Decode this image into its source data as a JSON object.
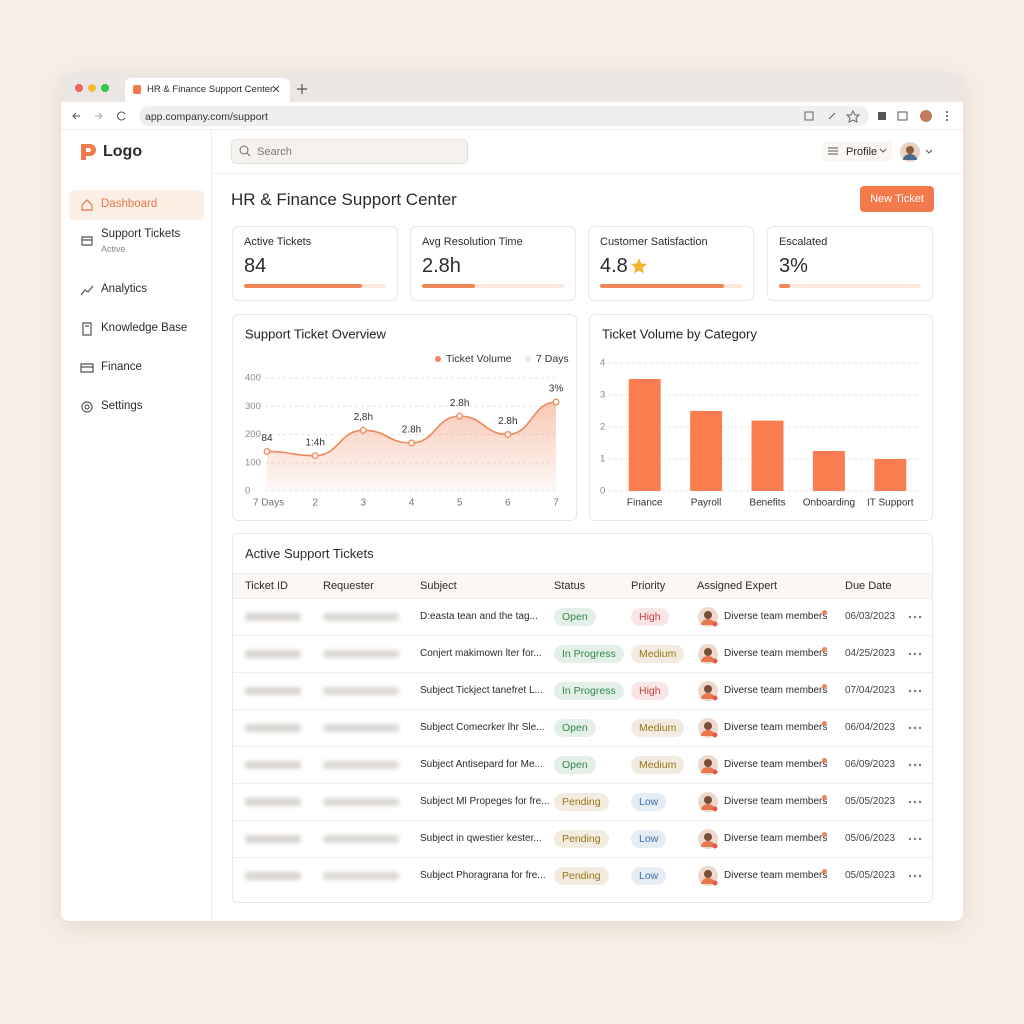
{
  "browser": {
    "tab_title": "HR & Finance Support Center",
    "url": "app.company.com/support"
  },
  "sidebar": {
    "logo": "Logo",
    "nav": [
      {
        "label": "Dashboard"
      },
      {
        "label": "Support Tickets",
        "sublabel": "Active"
      },
      {
        "label": "Analytics"
      },
      {
        "label": "Knowledge Base"
      },
      {
        "label": "Finance"
      },
      {
        "label": "Settings"
      }
    ]
  },
  "header": {
    "search_placeholder": "Search",
    "profile": "Profile"
  },
  "page": {
    "title": "HR & Finance Support Center",
    "new_ticket_button": "New Ticket"
  },
  "kpis": [
    {
      "label": "Active Tickets",
      "value": "84",
      "progress": 0.83
    },
    {
      "label": "Avg Resolution Time",
      "value": "2.8h",
      "progress": 0.37
    },
    {
      "label": "Customer Satisfaction",
      "value": "4.8",
      "progress": 0.87
    },
    {
      "label": "Escalated",
      "value": "3%",
      "progress": 0.08
    }
  ],
  "chart_data": [
    {
      "type": "line",
      "title": "Support Ticket Overview",
      "categories": [
        "7 Days",
        "2",
        "3",
        "4",
        "5",
        "6",
        "7"
      ],
      "series": [
        {
          "name": "Ticket Volume",
          "color": "#f0875a",
          "values": [
            140,
            125,
            215,
            170,
            265,
            200,
            315
          ],
          "point_labels": [
            "84",
            "1:4h",
            "2,8h",
            "2.8h",
            "2.8h",
            "2.8h",
            "3%"
          ]
        },
        {
          "name": "7 Days",
          "color": "#f6e3d4"
        }
      ],
      "ylim": [
        0,
        400
      ],
      "yticks": [
        0,
        100,
        200,
        300,
        400
      ],
      "grid": true
    },
    {
      "type": "bar",
      "title": "Ticket Volume by Category",
      "categories": [
        "Finance",
        "Payroll",
        "Benefits",
        "Onboarding",
        "IT Support"
      ],
      "values": [
        3.5,
        2.5,
        2.2,
        1.25,
        1
      ],
      "color": "#fa7d4f",
      "ylim": [
        0,
        4
      ],
      "yticks": [
        0,
        1,
        2,
        3,
        4
      ],
      "grid": true
    }
  ],
  "table": {
    "title": "Active Support Tickets",
    "columns": [
      "Ticket ID",
      "Requester",
      "Subject",
      "Status",
      "Priority",
      "Assigned Expert",
      "Due Date"
    ],
    "rows": [
      {
        "subject": "D:easta tean and the tag...",
        "status": {
          "label": "Open",
          "color": "#2f8a4a"
        },
        "priority": {
          "label": "High",
          "color": "#c94040"
        },
        "expert": "Diverse team members",
        "due_date": "06/03/2023"
      },
      {
        "subject": "Conjert makimown lter for...",
        "status": {
          "label": "In Progress",
          "color": "#2f8a4a"
        },
        "priority": {
          "label": "Medium",
          "color": "#9a7413"
        },
        "expert": "Diverse team members",
        "due_date": "04/25/2023"
      },
      {
        "subject": "Subject Tickject tanefret L...",
        "status": {
          "label": "In Progress",
          "color": "#2f8a4a"
        },
        "priority": {
          "label": "High",
          "color": "#c94040"
        },
        "expert": "Diverse team members",
        "due_date": "07/04/2023"
      },
      {
        "subject": "Subject Comecrker lhr Sle...",
        "status": {
          "label": "Open",
          "color": "#2f8a4a"
        },
        "priority": {
          "label": "Medium",
          "color": "#9a7413"
        },
        "expert": "Diverse team members",
        "due_date": "06/04/2023"
      },
      {
        "subject": "Subject Antisepard for Me...",
        "status": {
          "label": "Open",
          "color": "#2f8a4a"
        },
        "priority": {
          "label": "Medium",
          "color": "#9a7413"
        },
        "expert": "Diverse team members",
        "due_date": "06/09/2023"
      },
      {
        "subject": "Subject Ml Propeges for fre...",
        "status": {
          "label": "Pending",
          "color": "#9a7413"
        },
        "priority": {
          "label": "Low",
          "color": "#3b6fb0"
        },
        "expert": "Diverse team members",
        "due_date": "05/05/2023"
      },
      {
        "subject": "Subject in qwestier kester...",
        "status": {
          "label": "Pending",
          "color": "#9a7413"
        },
        "priority": {
          "label": "Low",
          "color": "#3b6fb0"
        },
        "expert": "Diverse team members",
        "due_date": "05/06/2023"
      },
      {
        "subject": "Subject Phoragrana for fre...",
        "status": {
          "label": "Pending",
          "color": "#9a7413"
        },
        "priority": {
          "label": "Low",
          "color": "#3b6fb0"
        },
        "expert": "Diverse team members",
        "due_date": "05/05/2023"
      }
    ]
  }
}
